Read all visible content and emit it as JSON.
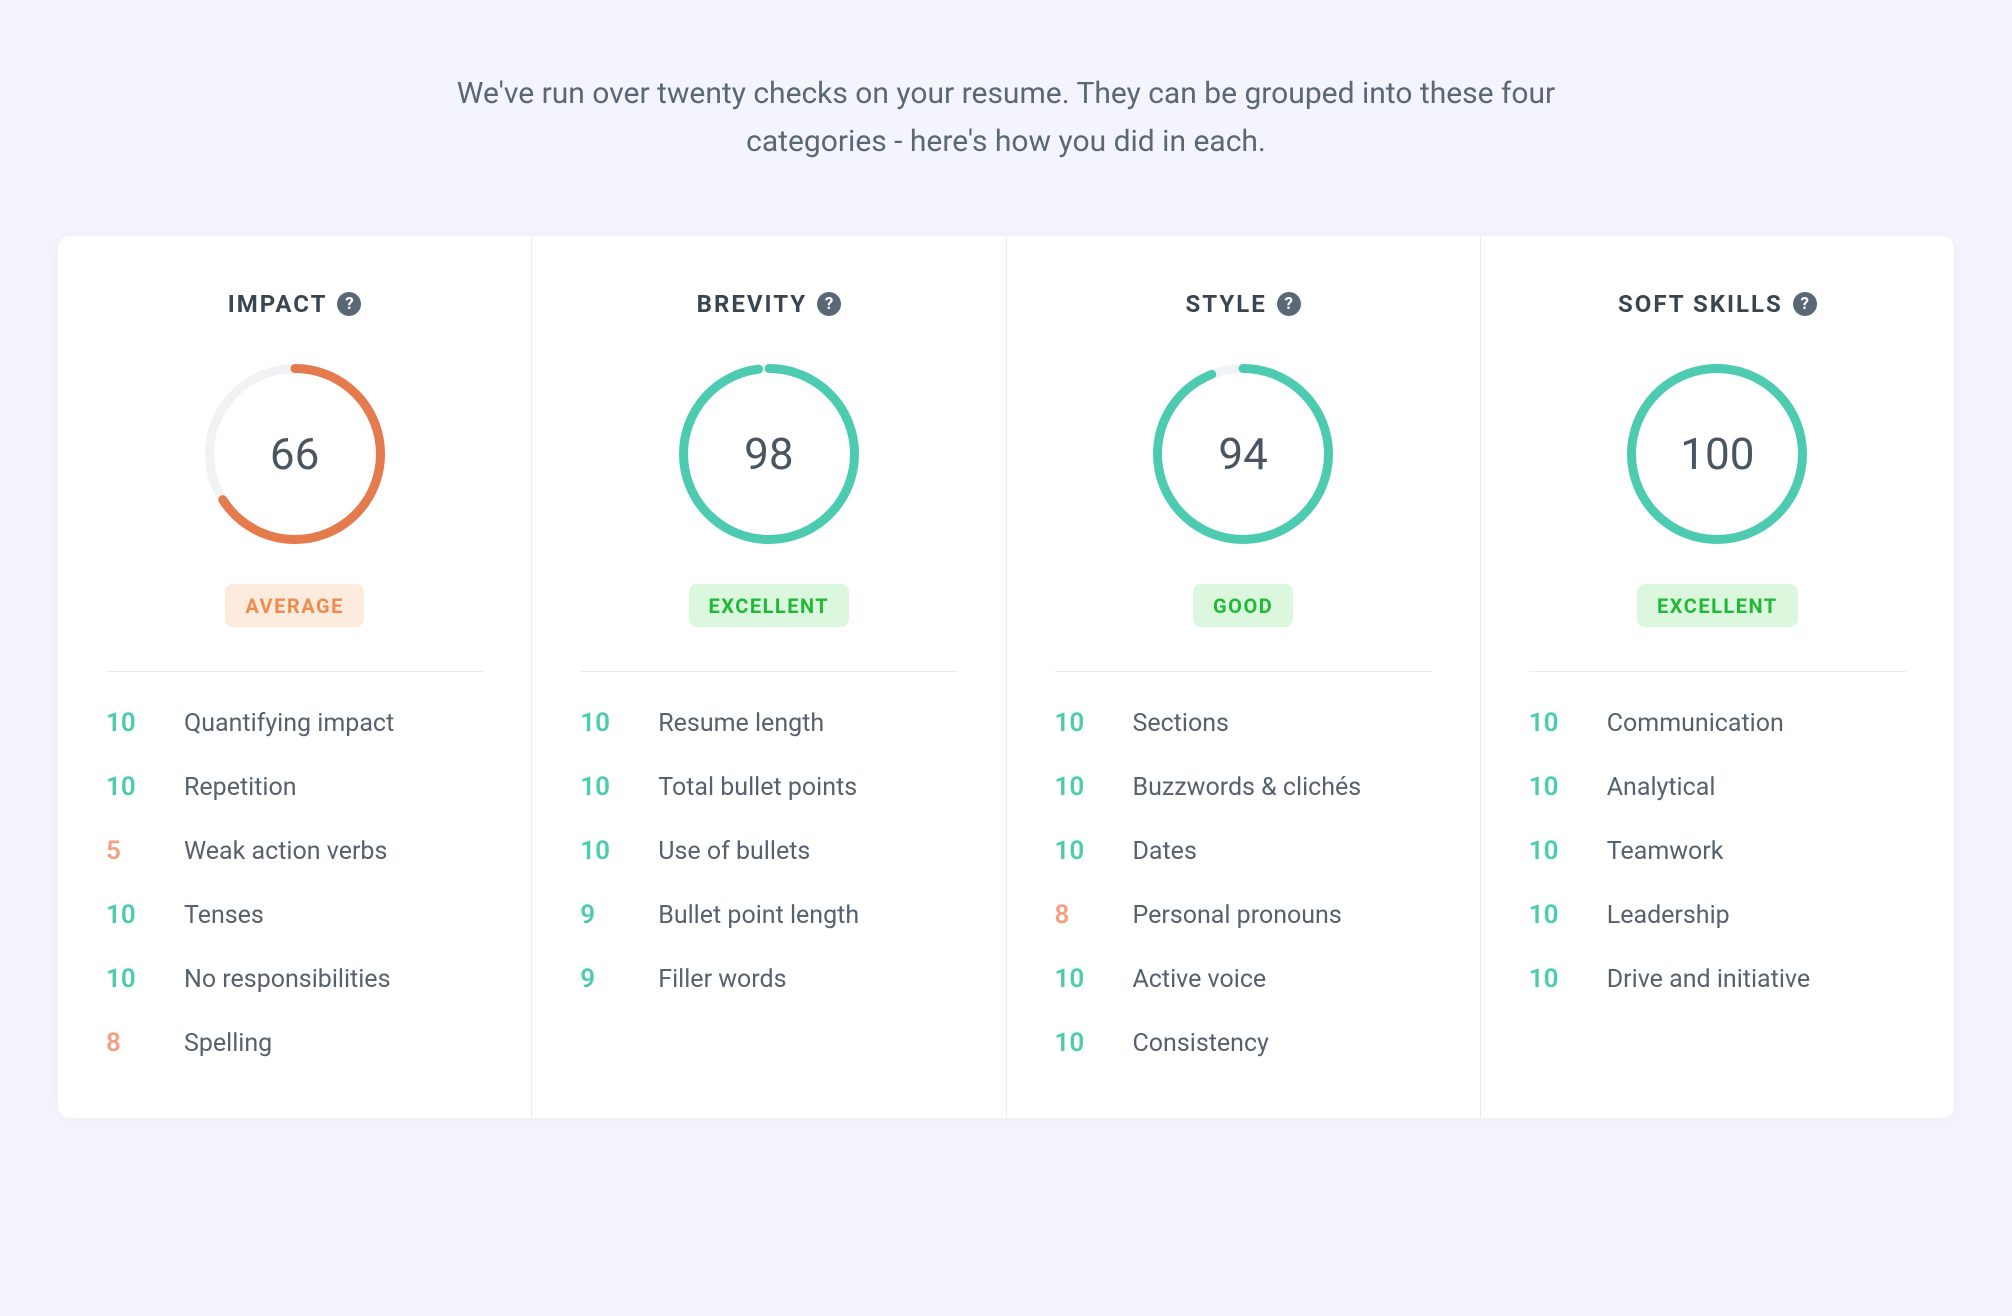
{
  "intro": "We've run over twenty checks on your resume. They can be grouped into these four categories - here's how you did in each.",
  "colors": {
    "background": "#f4f5fc",
    "card_bg": "#ffffff",
    "divider": "#ececec",
    "text_primary": "#3a4552",
    "text_secondary": "#56616d",
    "help_icon_bg": "#5a6774",
    "gauge_track": "#f1f2f4",
    "gauge_stroke_width": 9,
    "gauge_diameter": 180,
    "score_good": "#4ccbb1",
    "score_warn": "#f4a183",
    "ring_orange": "#e57a4d",
    "ring_teal": "#4ccbb1",
    "badge_orange_bg": "#fdecdd",
    "badge_orange_fg": "#ef8b4f",
    "badge_green_bg": "#dbf7dd",
    "badge_green_fg": "#1fb935"
  },
  "categories": [
    {
      "title": "IMPACT",
      "score": 66,
      "ring_color": "#e57a4d",
      "badge": {
        "text": "AVERAGE",
        "bg": "#fdecdd",
        "fg": "#ef8b4f"
      },
      "items": [
        {
          "score": 10,
          "label": "Quantifying impact",
          "color": "#4ccbb1"
        },
        {
          "score": 10,
          "label": "Repetition",
          "color": "#4ccbb1"
        },
        {
          "score": 5,
          "label": "Weak action verbs",
          "color": "#f4a183"
        },
        {
          "score": 10,
          "label": "Tenses",
          "color": "#4ccbb1"
        },
        {
          "score": 10,
          "label": "No responsibilities",
          "color": "#4ccbb1"
        },
        {
          "score": 8,
          "label": "Spelling",
          "color": "#f4a183"
        }
      ]
    },
    {
      "title": "BREVITY",
      "score": 98,
      "ring_color": "#4ccbb1",
      "badge": {
        "text": "EXCELLENT",
        "bg": "#dbf7dd",
        "fg": "#1fb935"
      },
      "items": [
        {
          "score": 10,
          "label": "Resume length",
          "color": "#4ccbb1"
        },
        {
          "score": 10,
          "label": "Total bullet points",
          "color": "#4ccbb1"
        },
        {
          "score": 10,
          "label": "Use of bullets",
          "color": "#4ccbb1"
        },
        {
          "score": 9,
          "label": "Bullet point length",
          "color": "#4ccbb1"
        },
        {
          "score": 9,
          "label": "Filler words",
          "color": "#4ccbb1"
        }
      ]
    },
    {
      "title": "STYLE",
      "score": 94,
      "ring_color": "#4ccbb1",
      "badge": {
        "text": "GOOD",
        "bg": "#dbf7dd",
        "fg": "#1fb935"
      },
      "items": [
        {
          "score": 10,
          "label": "Sections",
          "color": "#4ccbb1"
        },
        {
          "score": 10,
          "label": "Buzzwords & clichés",
          "color": "#4ccbb1"
        },
        {
          "score": 10,
          "label": "Dates",
          "color": "#4ccbb1"
        },
        {
          "score": 8,
          "label": "Personal pronouns",
          "color": "#f4a183"
        },
        {
          "score": 10,
          "label": "Active voice",
          "color": "#4ccbb1"
        },
        {
          "score": 10,
          "label": "Consistency",
          "color": "#4ccbb1"
        }
      ]
    },
    {
      "title": "SOFT SKILLS",
      "score": 100,
      "ring_color": "#4ccbb1",
      "badge": {
        "text": "EXCELLENT",
        "bg": "#dbf7dd",
        "fg": "#1fb935"
      },
      "items": [
        {
          "score": 10,
          "label": "Communication",
          "color": "#4ccbb1"
        },
        {
          "score": 10,
          "label": "Analytical",
          "color": "#4ccbb1"
        },
        {
          "score": 10,
          "label": "Teamwork",
          "color": "#4ccbb1"
        },
        {
          "score": 10,
          "label": "Leadership",
          "color": "#4ccbb1"
        },
        {
          "score": 10,
          "label": "Drive and initiative",
          "color": "#4ccbb1"
        }
      ]
    }
  ]
}
